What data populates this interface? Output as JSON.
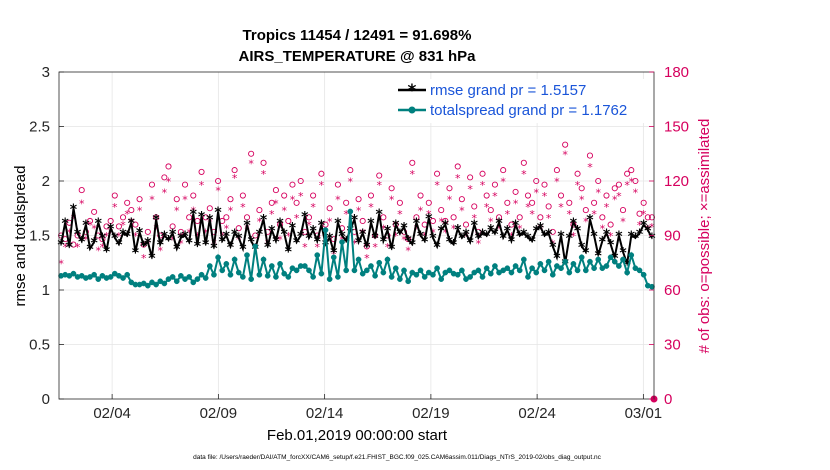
{
  "chart_data": {
    "type": "line",
    "title": [
      "Tropics 11454 / 12491 = 91.698%",
      "AIRS_TEMPERATURE @ 831 hPa"
    ],
    "xlabel": "Feb.01,2019 00:00:00 start",
    "ylabel": "rmse and totalspread",
    "ylabel_right": "# of obs: o=possible; ×=assimilated",
    "xlim": [
      0,
      28
    ],
    "ylim": [
      0,
      3
    ],
    "ylim_right": [
      0,
      180
    ],
    "x_ticks": [
      {
        "value": 2.5,
        "label": "02/04"
      },
      {
        "value": 7.5,
        "label": "02/09"
      },
      {
        "value": 12.5,
        "label": "02/14"
      },
      {
        "value": 17.5,
        "label": "02/19"
      },
      {
        "value": 22.5,
        "label": "02/24"
      },
      {
        "value": 27.5,
        "label": "03/01"
      }
    ],
    "y_ticks": [
      "0",
      "0.5",
      "1",
      "1.5",
      "2",
      "2.5",
      "3"
    ],
    "y_ticks_right": [
      "0",
      "30",
      "60",
      "90",
      "120",
      "150",
      "180"
    ],
    "series": [
      {
        "name": "rmse grand pr = 1.5157",
        "color": "#000000",
        "marker": "asterisk",
        "values": [
          1.42,
          1.62,
          1.4,
          1.75,
          1.52,
          1.45,
          1.6,
          1.38,
          1.44,
          1.62,
          1.48,
          1.36,
          1.57,
          1.48,
          1.42,
          1.52,
          1.5,
          1.62,
          1.35,
          1.53,
          1.41,
          1.44,
          1.3,
          1.65,
          1.42,
          1.5,
          1.46,
          1.52,
          1.38,
          1.48,
          1.5,
          1.44,
          1.7,
          1.41,
          1.68,
          1.42,
          1.65,
          1.39,
          1.72,
          1.45,
          1.5,
          1.4,
          1.52,
          1.48,
          1.38,
          1.6,
          1.45,
          1.38,
          1.52,
          1.65,
          1.4,
          1.55,
          1.45,
          1.62,
          1.52,
          1.36,
          1.58,
          1.44,
          1.5,
          1.68,
          1.48,
          1.55,
          1.45,
          1.6,
          1.42,
          1.48,
          1.35,
          1.62,
          1.5,
          1.45,
          1.55,
          1.65,
          1.44,
          1.52,
          1.4,
          1.62,
          1.48,
          1.7,
          1.45,
          1.55,
          1.38,
          1.6,
          1.52,
          1.58,
          1.46,
          1.42,
          1.62,
          1.5,
          1.45,
          1.66,
          1.48,
          1.4,
          1.55,
          1.6,
          1.45,
          1.42,
          1.56,
          1.48,
          1.52,
          1.44,
          1.6,
          1.48,
          1.52,
          1.5,
          1.56,
          1.52,
          1.62,
          1.48,
          1.55,
          1.45,
          1.6,
          1.5,
          1.52,
          1.48,
          1.45,
          1.55,
          1.58,
          1.5,
          1.52,
          1.4,
          1.3,
          1.5,
          1.25,
          1.48,
          1.62,
          1.55,
          1.4,
          1.35,
          1.65,
          1.5,
          1.32,
          1.45,
          1.52,
          1.42,
          1.3,
          1.5,
          1.35,
          1.24,
          1.5,
          1.48,
          1.52,
          1.6,
          1.55,
          1.48
        ]
      },
      {
        "name": "totalspread grand pr = 1.1762",
        "color": "#00807f",
        "marker": "circle",
        "values": [
          1.13,
          1.14,
          1.13,
          1.15,
          1.12,
          1.13,
          1.11,
          1.12,
          1.14,
          1.1,
          1.13,
          1.11,
          1.12,
          1.15,
          1.13,
          1.11,
          1.14,
          1.07,
          1.05,
          1.05,
          1.06,
          1.04,
          1.07,
          1.05,
          1.08,
          1.06,
          1.1,
          1.12,
          1.08,
          1.13,
          1.1,
          1.12,
          1.07,
          1.1,
          1.14,
          1.11,
          1.22,
          1.14,
          1.3,
          1.18,
          1.24,
          1.14,
          1.28,
          1.16,
          1.12,
          1.32,
          1.1,
          1.4,
          1.14,
          1.28,
          1.13,
          1.22,
          1.12,
          1.24,
          1.15,
          1.12,
          1.2,
          1.18,
          1.22,
          1.22,
          1.18,
          1.12,
          1.32,
          1.15,
          1.55,
          1.1,
          1.3,
          1.12,
          1.44,
          1.18,
          1.72,
          1.18,
          1.28,
          1.15,
          1.18,
          1.22,
          1.13,
          1.25,
          1.16,
          1.28,
          1.12,
          1.2,
          1.1,
          1.18,
          1.08,
          1.16,
          1.14,
          1.18,
          1.12,
          1.16,
          1.14,
          1.2,
          1.1,
          1.16,
          1.18,
          1.15,
          1.14,
          1.18,
          1.1,
          1.12,
          1.16,
          1.18,
          1.12,
          1.2,
          1.15,
          1.22,
          1.16,
          1.18,
          1.2,
          1.16,
          1.22,
          1.18,
          1.28,
          1.12,
          1.2,
          1.16,
          1.24,
          1.18,
          1.26,
          1.14,
          1.22,
          1.2,
          1.26,
          1.16,
          1.24,
          1.18,
          1.3,
          1.18,
          1.26,
          1.2,
          1.28,
          1.2,
          1.22,
          1.3,
          1.26,
          1.22,
          1.28,
          1.16,
          1.32,
          1.2,
          1.18,
          1.14,
          1.04,
          1.03
        ]
      },
      {
        "name": "possible obs",
        "color": "#d6005e",
        "marker": "o",
        "axis": "right",
        "values": [
          90,
          88,
          97,
          85,
          90,
          115,
          92,
          98,
          103,
          90,
          88,
          95,
          98,
          112,
          95,
          100,
          108,
          104,
          96,
          110,
          85,
          92,
          118,
          100,
          90,
          122,
          128,
          95,
          110,
          92,
          118,
          100,
          112,
          98,
          125,
          100,
          105,
          92,
          120,
          98,
          100,
          110,
          126,
          94,
          112,
          100,
          135,
          90,
          104,
          130,
          92,
          108,
          115,
          96,
          112,
          98,
          118,
          108,
          120,
          92,
          100,
          112,
          90,
          124,
          96,
          105,
          88,
          118,
          94,
          108,
          126,
          92,
          110,
          98,
          84,
          112,
          90,
          123,
          100,
          90,
          116,
          96,
          108,
          92,
          88,
          130,
          100,
          112,
          96,
          108,
          98,
          124,
          104,
          98,
          116,
          100,
          128,
          110,
          96,
          122,
          106,
          92,
          124,
          112,
          104,
          118,
          100,
          126,
          108,
          96,
          114,
          100,
          130,
          112,
          108,
          120,
          100,
          118,
          106,
          92,
          126,
          112,
          140,
          108,
          96,
          124,
          116,
          104,
          134,
          108,
          120,
          100,
          112,
          96,
          116,
          118,
          104,
          124,
          126,
          120,
          102,
          108,
          100,
          100
        ]
      },
      {
        "name": "assimilated obs",
        "color": "#d6005e",
        "marker": "x",
        "axis": "right",
        "values": [
          75,
          84,
          92,
          100,
          84,
          108,
          88,
          96,
          94,
          82,
          84,
          90,
          92,
          106,
          90,
          96,
          102,
          98,
          90,
          104,
          78,
          86,
          110,
          94,
          82,
          114,
          120,
          88,
          104,
          86,
          110,
          92,
          104,
          90,
          118,
          92,
          98,
          86,
          115,
          90,
          94,
          104,
          122,
          88,
          106,
          94,
          130,
          84,
          98,
          124,
          86,
          102,
          108,
          88,
          104,
          90,
          110,
          100,
          112,
          84,
          96,
          106,
          84,
          118,
          88,
          98,
          80,
          110,
          88,
          102,
          120,
          86,
          104,
          92,
          78,
          106,
          84,
          118,
          94,
          84,
          110,
          90,
          102,
          88,
          82,
          124,
          94,
          104,
          90,
          102,
          92,
          118,
          98,
          92,
          110,
          94,
          122,
          104,
          90,
          116,
          100,
          86,
          118,
          106,
          98,
          112,
          94,
          120,
          102,
          90,
          108,
          94,
          124,
          106,
          102,
          114,
          94,
          112,
          100,
          86,
          120,
          106,
          135,
          102,
          90,
          118,
          110,
          98,
          128,
          102,
          114,
          94,
          106,
          90,
          110,
          112,
          98,
          118,
          120,
          114,
          96,
          102,
          94,
          95
        ]
      }
    ]
  },
  "footer": "data file: /Users/raeder/DAI/ATM_forcXX/CAM6_setup/f.e21.FHIST_BGC.f09_025.CAM6assim.011/Diags_NTrS_2019-02/obs_diag_output.nc"
}
